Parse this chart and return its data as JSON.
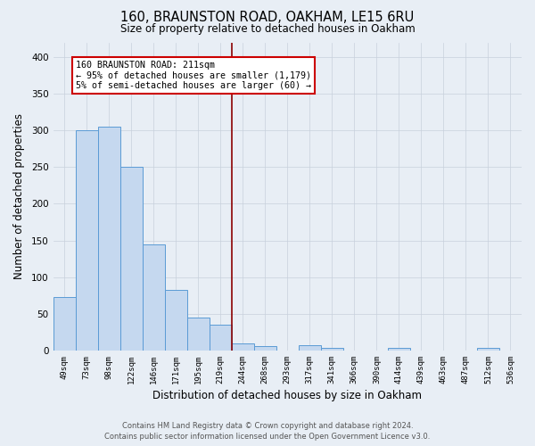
{
  "title": "160, BRAUNSTON ROAD, OAKHAM, LE15 6RU",
  "subtitle": "Size of property relative to detached houses in Oakham",
  "xlabel": "Distribution of detached houses by size in Oakham",
  "ylabel": "Number of detached properties",
  "categories": [
    "49sqm",
    "73sqm",
    "98sqm",
    "122sqm",
    "146sqm",
    "171sqm",
    "195sqm",
    "219sqm",
    "244sqm",
    "268sqm",
    "293sqm",
    "317sqm",
    "341sqm",
    "366sqm",
    "390sqm",
    "414sqm",
    "439sqm",
    "463sqm",
    "487sqm",
    "512sqm",
    "536sqm"
  ],
  "values": [
    73,
    300,
    305,
    250,
    145,
    83,
    45,
    35,
    10,
    6,
    0,
    7,
    3,
    0,
    0,
    4,
    0,
    0,
    0,
    4,
    0
  ],
  "bar_color": "#c5d8ef",
  "bar_edge_color": "#5b9bd5",
  "grid_color": "#c8d0dc",
  "bg_color": "#e8eef5",
  "property_line_color": "#8b0000",
  "annotation_text": "160 BRAUNSTON ROAD: 211sqm\n← 95% of detached houses are smaller (1,179)\n5% of semi-detached houses are larger (60) →",
  "annotation_box_color": "#ffffff",
  "annotation_box_edge": "#cc0000",
  "footer_line1": "Contains HM Land Registry data © Crown copyright and database right 2024.",
  "footer_line2": "Contains public sector information licensed under the Open Government Licence v3.0.",
  "ylim": [
    0,
    420
  ],
  "property_line_idx": 7.5
}
